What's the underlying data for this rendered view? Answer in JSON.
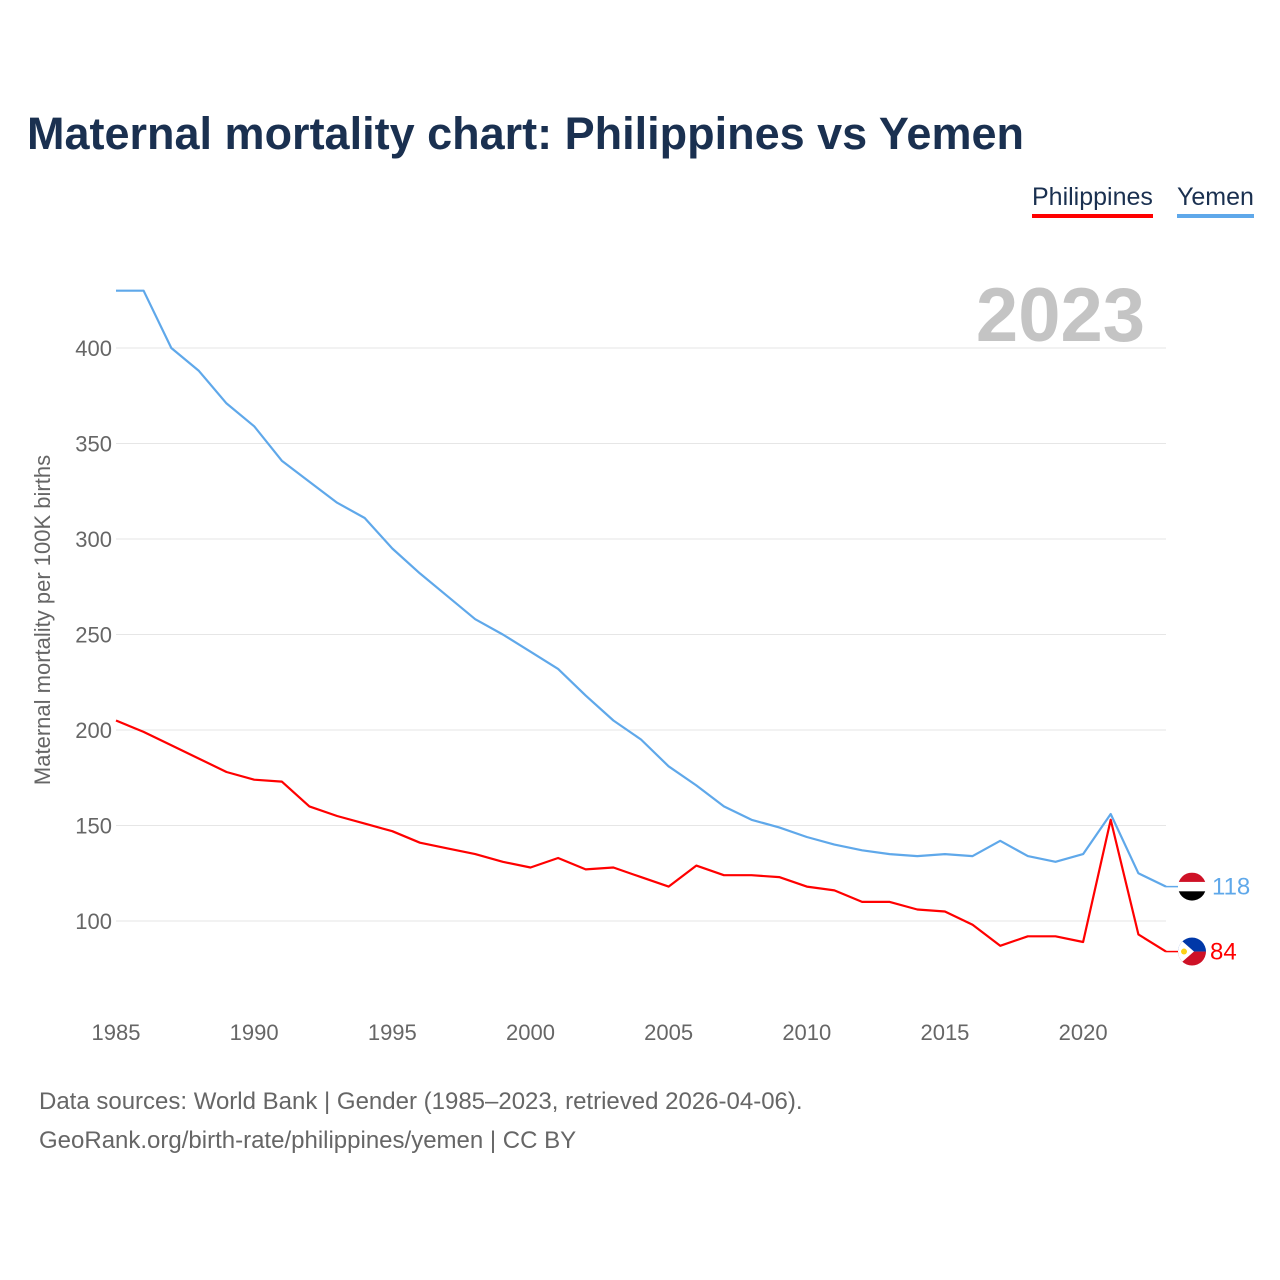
{
  "title": "Maternal mortality chart: Philippines vs Yemen",
  "year_label": "2023",
  "footer": {
    "line1": "Data sources: World Bank | Gender (1985–2023, retrieved 2026-04-06).",
    "line2": "GeoRank.org/birth-rate/philippines/yemen | CC BY"
  },
  "colors": {
    "philippines": "#ff0000",
    "yemen": "#5fa8ea"
  },
  "chart_data": {
    "type": "line",
    "title": "Maternal mortality chart: Philippines vs Yemen",
    "xlabel": "",
    "ylabel": "Maternal mortality per 100K births",
    "xlim": [
      1985,
      2023
    ],
    "ylim": [
      70,
      430
    ],
    "xticks": [
      "1985",
      "1990",
      "1995",
      "2000",
      "2005",
      "2010",
      "2015",
      "2020"
    ],
    "yticks": [
      "100",
      "150",
      "200",
      "250",
      "300",
      "350",
      "400"
    ],
    "grid": true,
    "legend": "top-right",
    "x": [
      1985,
      1986,
      1987,
      1988,
      1989,
      1990,
      1991,
      1992,
      1993,
      1994,
      1995,
      1996,
      1997,
      1998,
      1999,
      2000,
      2001,
      2002,
      2003,
      2004,
      2005,
      2006,
      2007,
      2008,
      2009,
      2010,
      2011,
      2012,
      2013,
      2014,
      2015,
      2016,
      2017,
      2018,
      2019,
      2020,
      2021,
      2022,
      2023
    ],
    "series": [
      {
        "name": "Philippines",
        "end_label": "84",
        "values": [
          205,
          199,
          192,
          185,
          178,
          174,
          173,
          160,
          155,
          151,
          147,
          141,
          138,
          135,
          131,
          128,
          133,
          127,
          128,
          123,
          118,
          129,
          124,
          124,
          123,
          118,
          116,
          110,
          110,
          106,
          105,
          98,
          87,
          92,
          92,
          89,
          153,
          93,
          84
        ]
      },
      {
        "name": "Yemen",
        "end_label": "118",
        "values": [
          430,
          430,
          400,
          388,
          371,
          359,
          341,
          330,
          319,
          311,
          295,
          282,
          270,
          258,
          250,
          241,
          232,
          218,
          205,
          195,
          181,
          171,
          160,
          153,
          149,
          144,
          140,
          137,
          135,
          134,
          135,
          134,
          142,
          134,
          131,
          135,
          156,
          125,
          118
        ]
      }
    ]
  }
}
